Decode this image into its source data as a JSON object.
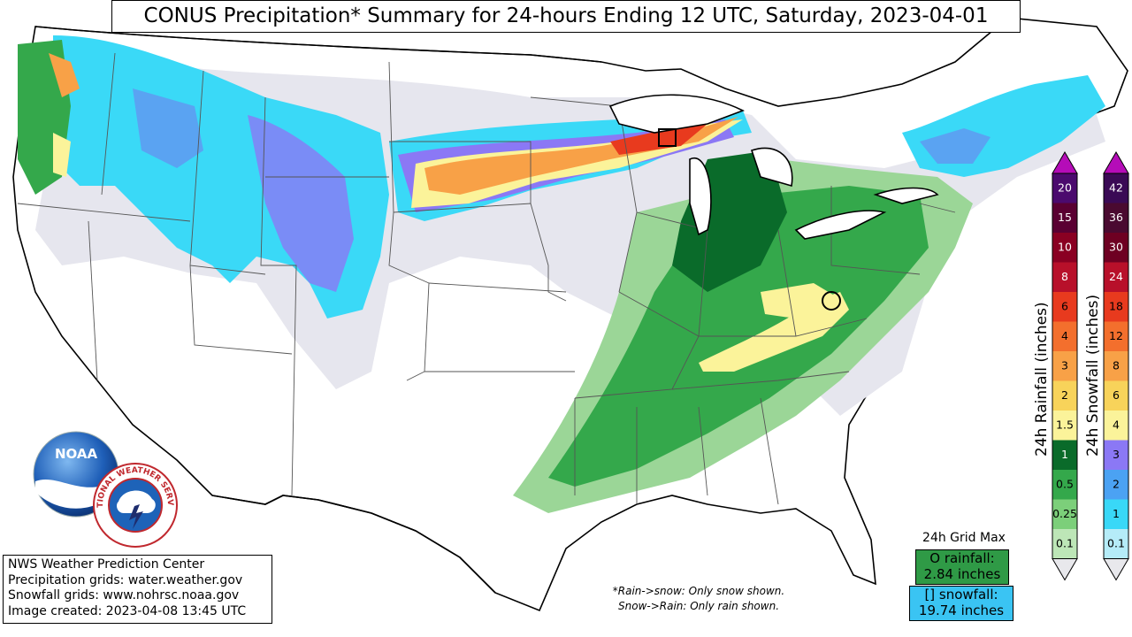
{
  "title": "CONUS Precipitation* Summary for 24-hours Ending 12 UTC, Saturday, 2023-04-01",
  "info_box": {
    "line1": "NWS Weather Prediction Center",
    "line2": "Precipitation grids: water.weather.gov",
    "line3": "Snowfall grids: www.nohrsc.noaa.gov",
    "line4": "Image created: 2023-04-08 13:45 UTC"
  },
  "footnote": {
    "line1": "*Rain->snow: Only snow shown.",
    "line2": "Snow->Rain: Only rain shown."
  },
  "grid_max": {
    "title": "24h Grid Max",
    "rain_label": "O rainfall:",
    "rain_value": "2.84 inches",
    "snow_label": "[] snowfall:",
    "snow_value": "19.74 inches"
  },
  "rain_colorbar": {
    "label": "24h Rainfall (inches)",
    "levels": [
      "0.1",
      "0.25",
      "0.5",
      "1",
      "1.5",
      "2",
      "3",
      "4",
      "6",
      "8",
      "10",
      "15",
      "20"
    ],
    "colors": [
      "#bde6b7",
      "#7ccf7a",
      "#34a84b",
      "#0a6b2a",
      "#fbf39a",
      "#f8d35a",
      "#f8a147",
      "#f36f2d",
      "#e83a1e",
      "#b8102a",
      "#8a0022",
      "#5a0032",
      "#4b0a6e"
    ],
    "top_color": "#b50cb8",
    "bottom_color": "#e8e8ec"
  },
  "snow_colorbar": {
    "label": "24h Snowfall (inches)",
    "levels": [
      "0.1",
      "1",
      "2",
      "3",
      "4",
      "6",
      "8",
      "12",
      "18",
      "24",
      "30",
      "36",
      "42"
    ],
    "colors": [
      "#b5ecf8",
      "#39d8f7",
      "#4ba2f3",
      "#8b78f5",
      "#fbf39a",
      "#f8d35a",
      "#f8a147",
      "#f36f2d",
      "#e83a1e",
      "#b8102a",
      "#6e0022",
      "#4a0a30",
      "#3a0a55"
    ],
    "top_color": "#b50cb8",
    "bottom_color": "#e8e8ec"
  },
  "logos": {
    "noaa_text": "NOAA",
    "nws_text": "NATIONAL WEATHER SERVICE"
  },
  "map_colors": {
    "light_trace": "#e6e6ee",
    "snow_light": "#3ad9f7",
    "snow_mid": "#5aa3f2",
    "snow_purple": "#8b78f5",
    "rain_light": "#9bd697",
    "rain_mid": "#34a84b",
    "rain_dark": "#0a6b2a",
    "yellow": "#fbf39a",
    "orange": "#f8a147",
    "red": "#e83a1e"
  }
}
